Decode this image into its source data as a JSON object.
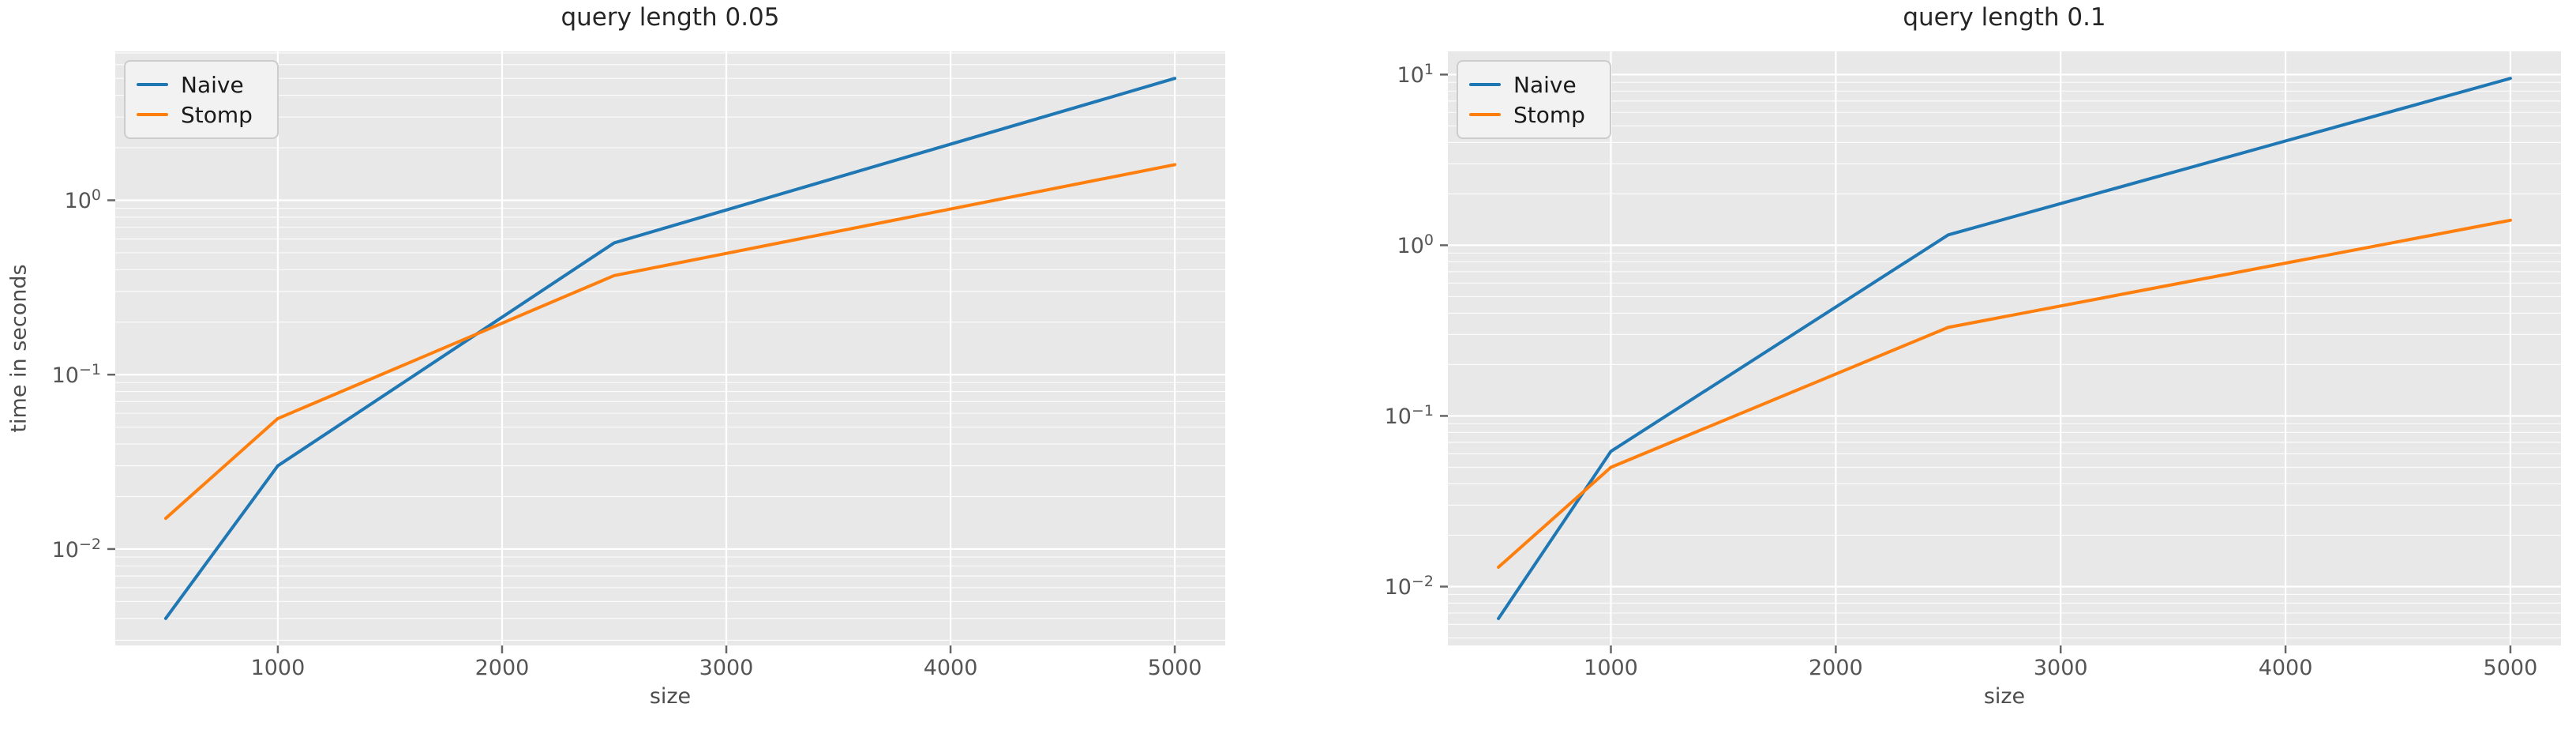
{
  "figure": {
    "background": "#ffffff",
    "plot_background": "#e8e8e8",
    "grid_color": "#ffffff",
    "tick_color": "#555555",
    "title_color": "#262626",
    "axis_label_color": "#4d4d4d"
  },
  "legend_labels": {
    "naive": "Naive",
    "stomp": "Stomp"
  },
  "chart_data": [
    {
      "type": "line",
      "title": "query length 0.05",
      "xlabel": "size",
      "ylabel": "time in seconds",
      "yscale": "log",
      "grid": true,
      "legend_position": "upper left",
      "x": [
        500,
        1000,
        2500,
        5000
      ],
      "series": [
        {
          "name": "Naive",
          "color": "#1f77b4",
          "values": [
            0.004,
            0.03,
            0.57,
            5.0
          ]
        },
        {
          "name": "Stomp",
          "color": "#ff7f0e",
          "values": [
            0.015,
            0.056,
            0.37,
            1.6
          ]
        }
      ],
      "xticks": [
        1000,
        2000,
        3000,
        4000,
        5000
      ],
      "ytick_exponents": [
        0,
        -1,
        -2
      ],
      "xlim": [
        275,
        5225
      ],
      "ylim_log": [
        -2.553,
        0.854
      ]
    },
    {
      "type": "line",
      "title": "query length 0.1",
      "xlabel": "size",
      "ylabel": null,
      "yscale": "log",
      "grid": true,
      "legend_position": "upper left",
      "x": [
        500,
        1000,
        2500,
        5000
      ],
      "series": [
        {
          "name": "Naive",
          "color": "#1f77b4",
          "values": [
            0.0065,
            0.062,
            1.15,
            9.5
          ]
        },
        {
          "name": "Stomp",
          "color": "#ff7f0e",
          "values": [
            0.013,
            0.05,
            0.33,
            1.4
          ]
        }
      ],
      "xticks": [
        1000,
        2000,
        3000,
        4000,
        5000
      ],
      "ytick_exponents": [
        1,
        0,
        -1,
        -2
      ],
      "xlim": [
        275,
        5225
      ],
      "ylim_log": [
        -2.345,
        1.136
      ]
    }
  ]
}
